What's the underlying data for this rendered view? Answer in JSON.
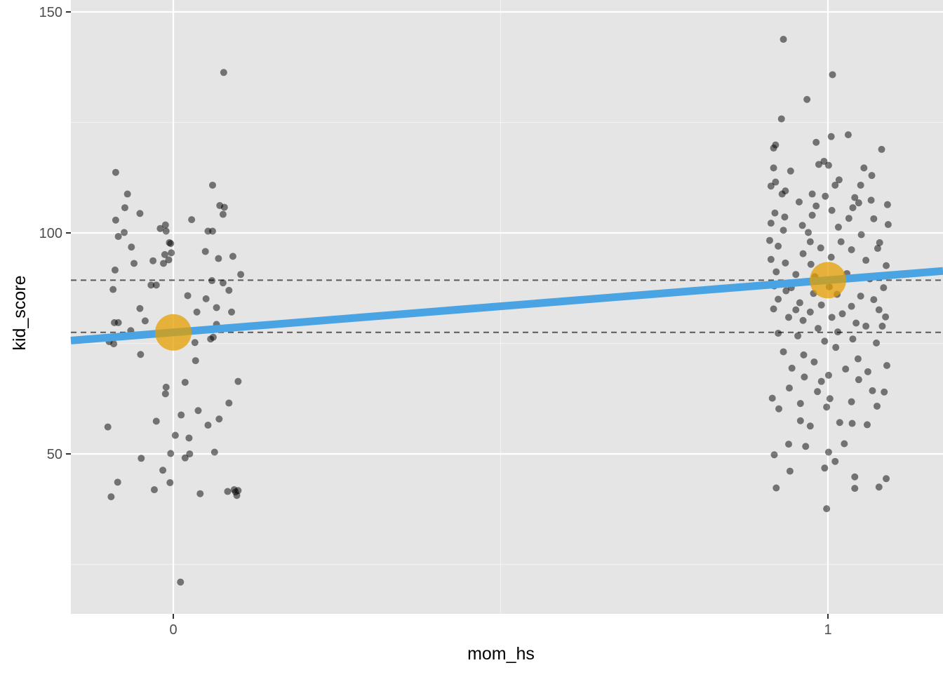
{
  "chart_data": {
    "type": "scatter",
    "title": "",
    "xlabel": "mom_hs",
    "ylabel": "kid_score",
    "xlim": [
      -0.157,
      1.157
    ],
    "ylim": [
      13.8,
      150
    ],
    "x_ticks": [
      0,
      1
    ],
    "x_tick_labels": [
      "0",
      "1"
    ],
    "y_ticks": [
      50,
      100,
      150
    ],
    "y_tick_labels": [
      "50",
      "100",
      "150"
    ],
    "grid": true,
    "panel_background": "#e5e5e5",
    "colors": {
      "points": "#000000",
      "points_opacity": 0.5,
      "regression_line": "#4aa3e3",
      "group_means": "#e69f00",
      "hlines": "#595959"
    },
    "regression_line": {
      "intercept": 77.5,
      "slope": 11.8
    },
    "group_means": [
      {
        "x": 0,
        "y": 77.5
      },
      {
        "x": 1,
        "y": 89.3
      }
    ],
    "hlines": [
      77.5,
      89.3
    ],
    "points": [
      [
        -0.088,
        113.7
      ],
      [
        -0.07,
        108.8
      ],
      [
        -0.074,
        105.7
      ],
      [
        -0.051,
        104.4
      ],
      [
        -0.088,
        102.9
      ],
      [
        -0.075,
        100.1
      ],
      [
        -0.084,
        99.2
      ],
      [
        -0.064,
        96.8
      ],
      [
        -0.031,
        93.7
      ],
      [
        -0.06,
        93.1
      ],
      [
        -0.089,
        91.6
      ],
      [
        -0.092,
        87.2
      ],
      [
        -0.034,
        88.2
      ],
      [
        -0.051,
        82.9
      ],
      [
        -0.043,
        80.1
      ],
      [
        -0.09,
        79.7
      ],
      [
        -0.084,
        79.7
      ],
      [
        -0.065,
        77.9
      ],
      [
        -0.098,
        75.4
      ],
      [
        -0.091,
        74.9
      ],
      [
        -0.05,
        72.5
      ],
      [
        -0.1,
        56.1
      ],
      [
        -0.049,
        49.0
      ],
      [
        -0.085,
        43.6
      ],
      [
        -0.095,
        40.3
      ],
      [
        -0.02,
        101.0
      ],
      [
        -0.012,
        101.8
      ],
      [
        -0.011,
        100.4
      ],
      [
        -0.006,
        97.8
      ],
      [
        -0.004,
        97.6
      ],
      [
        -0.013,
        95.1
      ],
      [
        -0.003,
        95.5
      ],
      [
        -0.015,
        93.1
      ],
      [
        -0.007,
        93.9
      ],
      [
        -0.026,
        88.2
      ],
      [
        -0.011,
        65.1
      ],
      [
        -0.012,
        63.6
      ],
      [
        -0.026,
        57.4
      ],
      [
        -0.016,
        46.3
      ],
      [
        -0.005,
        43.5
      ],
      [
        -0.029,
        41.9
      ],
      [
        0.003,
        54.2
      ],
      [
        -0.004,
        50.1
      ],
      [
        0.011,
        21.0
      ],
      [
        0.012,
        58.8
      ],
      [
        0.018,
        66.2
      ],
      [
        0.018,
        49.1
      ],
      [
        0.022,
        85.8
      ],
      [
        0.024,
        53.6
      ],
      [
        0.025,
        50.0
      ],
      [
        0.028,
        103.0
      ],
      [
        0.03,
        77.9
      ],
      [
        0.033,
        75.2
      ],
      [
        0.034,
        71.1
      ],
      [
        0.036,
        82.1
      ],
      [
        0.038,
        59.8
      ],
      [
        0.041,
        41.0
      ],
      [
        0.049,
        95.8
      ],
      [
        0.05,
        85.1
      ],
      [
        0.053,
        100.4
      ],
      [
        0.053,
        56.5
      ],
      [
        0.057,
        76.0
      ],
      [
        0.06,
        110.8
      ],
      [
        0.06,
        100.4
      ],
      [
        0.059,
        89.2
      ],
      [
        0.061,
        76.4
      ],
      [
        0.066,
        83.1
      ],
      [
        0.066,
        79.3
      ],
      [
        0.069,
        94.2
      ],
      [
        0.07,
        57.9
      ],
      [
        0.071,
        106.2
      ],
      [
        0.076,
        104.2
      ],
      [
        0.076,
        88.7
      ],
      [
        0.077,
        136.3
      ],
      [
        0.063,
        50.4
      ],
      [
        0.078,
        105.8
      ],
      [
        0.083,
        41.5
      ],
      [
        0.085,
        61.5
      ],
      [
        0.089,
        82.1
      ],
      [
        0.091,
        94.7
      ],
      [
        0.093,
        41.9
      ],
      [
        0.095,
        41.4
      ],
      [
        0.097,
        40.6
      ],
      [
        0.099,
        41.7
      ],
      [
        0.099,
        66.4
      ],
      [
        0.085,
        87.0
      ],
      [
        0.103,
        90.6
      ],
      [
        0.932,
        143.8
      ],
      [
        0.968,
        130.2
      ],
      [
        1.007,
        135.8
      ],
      [
        1.031,
        122.2
      ],
      [
        0.929,
        125.8
      ],
      [
        1.005,
        121.8
      ],
      [
        0.982,
        120.5
      ],
      [
        0.917,
        119.2
      ],
      [
        0.92,
        119.9
      ],
      [
        1.082,
        118.9
      ],
      [
        0.994,
        116.2
      ],
      [
        0.986,
        115.5
      ],
      [
        1.001,
        115.3
      ],
      [
        0.917,
        114.7
      ],
      [
        1.055,
        114.7
      ],
      [
        0.943,
        114.0
      ],
      [
        1.067,
        113.0
      ],
      [
        1.017,
        112.0
      ],
      [
        0.92,
        111.5
      ],
      [
        1.011,
        110.8
      ],
      [
        1.05,
        110.8
      ],
      [
        0.913,
        110.6
      ],
      [
        0.935,
        109.5
      ],
      [
        0.93,
        108.8
      ],
      [
        0.976,
        108.8
      ],
      [
        0.996,
        108.3
      ],
      [
        1.041,
        108.0
      ],
      [
        1.066,
        107.4
      ],
      [
        0.956,
        107.0
      ],
      [
        1.047,
        106.8
      ],
      [
        1.091,
        106.4
      ],
      [
        0.982,
        106.1
      ],
      [
        1.038,
        105.7
      ],
      [
        1.006,
        105.1
      ],
      [
        0.919,
        104.5
      ],
      [
        0.976,
        104.0
      ],
      [
        0.934,
        103.6
      ],
      [
        1.032,
        103.3
      ],
      [
        1.07,
        103.2
      ],
      [
        0.913,
        102.2
      ],
      [
        0.961,
        101.7
      ],
      [
        1.016,
        101.3
      ],
      [
        1.092,
        101.9
      ],
      [
        0.932,
        100.6
      ],
      [
        0.97,
        100.1
      ],
      [
        1.051,
        99.6
      ],
      [
        0.911,
        98.3
      ],
      [
        0.973,
        98.0
      ],
      [
        1.02,
        98.0
      ],
      [
        1.079,
        97.8
      ],
      [
        0.924,
        97.0
      ],
      [
        0.989,
        96.6
      ],
      [
        1.036,
        96.2
      ],
      [
        1.076,
        96.5
      ],
      [
        0.962,
        95.3
      ],
      [
        0.913,
        94.0
      ],
      [
        1.005,
        94.5
      ],
      [
        0.935,
        93.2
      ],
      [
        0.974,
        92.9
      ],
      [
        1.058,
        93.8
      ],
      [
        1.089,
        92.6
      ],
      [
        0.921,
        91.2
      ],
      [
        0.951,
        90.6
      ],
      [
        1.029,
        90.8
      ],
      [
        0.98,
        90.1
      ],
      [
        1.064,
        89.6
      ],
      [
        0.918,
        88.0
      ],
      [
        0.944,
        87.6
      ],
      [
        1.002,
        87.8
      ],
      [
        1.085,
        87.6
      ],
      [
        0.936,
        86.9
      ],
      [
        0.978,
        86.3
      ],
      [
        1.014,
        86.1
      ],
      [
        1.05,
        85.7
      ],
      [
        0.924,
        85.0
      ],
      [
        1.07,
        84.9
      ],
      [
        0.957,
        84.2
      ],
      [
        0.99,
        83.7
      ],
      [
        1.036,
        83.4
      ],
      [
        0.917,
        82.8
      ],
      [
        0.951,
        82.6
      ],
      [
        1.078,
        82.6
      ],
      [
        0.973,
        82.1
      ],
      [
        1.022,
        81.7
      ],
      [
        0.94,
        80.9
      ],
      [
        1.006,
        80.9
      ],
      [
        1.088,
        81.0
      ],
      [
        0.962,
        80.2
      ],
      [
        1.043,
        79.6
      ],
      [
        0.985,
        78.4
      ],
      [
        1.058,
        78.9
      ],
      [
        0.924,
        77.3
      ],
      [
        1.015,
        77.6
      ],
      [
        1.083,
        78.9
      ],
      [
        0.954,
        76.7
      ],
      [
        1.038,
        76.0
      ],
      [
        0.995,
        75.5
      ],
      [
        1.074,
        75.1
      ],
      [
        0.932,
        73.1
      ],
      [
        1.012,
        74.1
      ],
      [
        0.963,
        72.4
      ],
      [
        1.046,
        71.5
      ],
      [
        0.979,
        70.8
      ],
      [
        1.09,
        70.0
      ],
      [
        0.945,
        69.4
      ],
      [
        1.027,
        69.2
      ],
      [
        1.061,
        68.6
      ],
      [
        0.964,
        67.4
      ],
      [
        1.001,
        67.8
      ],
      [
        0.99,
        66.4
      ],
      [
        1.047,
        66.8
      ],
      [
        0.941,
        64.9
      ],
      [
        0.984,
        64.1
      ],
      [
        1.068,
        64.3
      ],
      [
        0.915,
        62.6
      ],
      [
        1.003,
        62.5
      ],
      [
        0.958,
        61.4
      ],
      [
        1.036,
        61.8
      ],
      [
        0.925,
        60.2
      ],
      [
        0.998,
        60.6
      ],
      [
        1.075,
        60.8
      ],
      [
        1.086,
        64.0
      ],
      [
        0.958,
        57.5
      ],
      [
        1.018,
        57.1
      ],
      [
        1.06,
        56.6
      ],
      [
        0.973,
        56.3
      ],
      [
        1.037,
        56.9
      ],
      [
        0.94,
        52.2
      ],
      [
        0.966,
        51.7
      ],
      [
        1.025,
        52.3
      ],
      [
        0.918,
        49.8
      ],
      [
        1.001,
        50.4
      ],
      [
        1.011,
        48.3
      ],
      [
        0.995,
        46.8
      ],
      [
        0.942,
        46.1
      ],
      [
        0.921,
        42.3
      ],
      [
        1.041,
        44.8
      ],
      [
        1.041,
        42.2
      ],
      [
        1.078,
        42.5
      ],
      [
        1.089,
        44.4
      ],
      [
        0.998,
        37.6
      ]
    ]
  }
}
